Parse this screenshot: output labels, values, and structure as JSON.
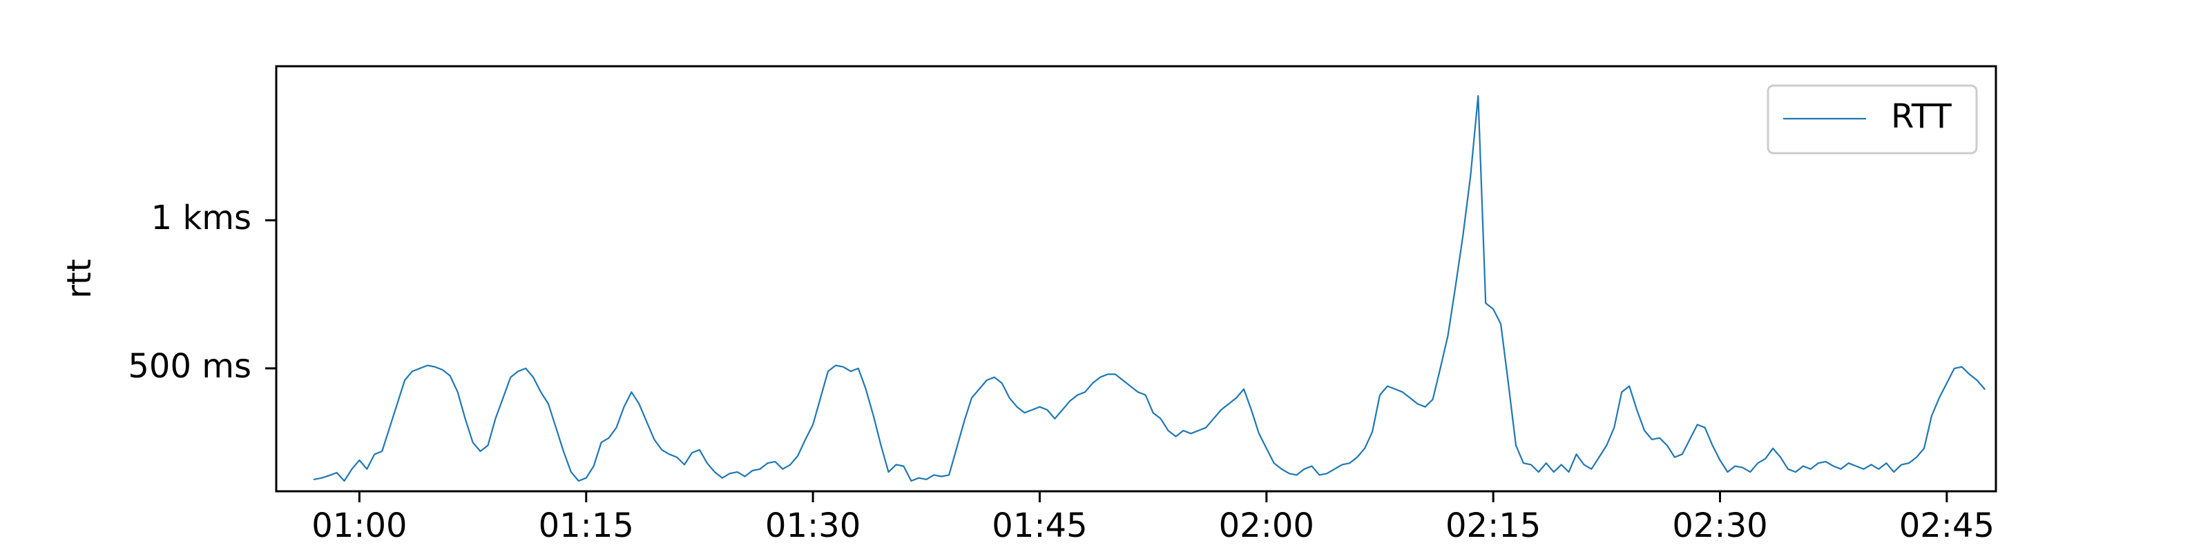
{
  "chart_data": {
    "type": "line",
    "title": "",
    "xlabel": "",
    "ylabel": "rtt",
    "x_unit": "HH:MM",
    "y_unit": "ms",
    "xlim": [
      "00:54:30",
      "02:48:15"
    ],
    "ylim": [
      85,
      1520
    ],
    "x_ticks": [
      {
        "value": "01:00",
        "label": "01:00"
      },
      {
        "value": "01:15",
        "label": "01:15"
      },
      {
        "value": "01:30",
        "label": "01:30"
      },
      {
        "value": "01:45",
        "label": "01:45"
      },
      {
        "value": "02:00",
        "label": "02:00"
      },
      {
        "value": "02:15",
        "label": "02:15"
      },
      {
        "value": "02:30",
        "label": "02:30"
      },
      {
        "value": "02:45",
        "label": "02:45"
      }
    ],
    "y_ticks": [
      {
        "value": 500,
        "label": "500 ms"
      },
      {
        "value": 1000,
        "label": "1 kms"
      }
    ],
    "grid": false,
    "legend": {
      "position": "top-right",
      "entries": [
        "RTT"
      ]
    },
    "series": [
      {
        "name": "RTT",
        "color": "#1f77b4",
        "points": [
          [
            "00:57:00",
            125
          ],
          [
            "00:57:30",
            130
          ],
          [
            "00:58:00",
            138
          ],
          [
            "00:58:30",
            148
          ],
          [
            "00:59:00",
            120
          ],
          [
            "00:59:30",
            160
          ],
          [
            "01:00:00",
            190
          ],
          [
            "01:00:30",
            160
          ],
          [
            "01:01:00",
            210
          ],
          [
            "01:01:30",
            220
          ],
          [
            "01:02:00",
            300
          ],
          [
            "01:02:30",
            380
          ],
          [
            "01:03:00",
            460
          ],
          [
            "01:03:30",
            490
          ],
          [
            "01:04:00",
            500
          ],
          [
            "01:04:30",
            510
          ],
          [
            "01:05:00",
            505
          ],
          [
            "01:05:30",
            495
          ],
          [
            "01:06:00",
            475
          ],
          [
            "01:06:30",
            420
          ],
          [
            "01:07:00",
            330
          ],
          [
            "01:07:30",
            250
          ],
          [
            "01:08:00",
            220
          ],
          [
            "01:08:30",
            240
          ],
          [
            "01:09:00",
            330
          ],
          [
            "01:09:30",
            400
          ],
          [
            "01:10:00",
            470
          ],
          [
            "01:10:30",
            490
          ],
          [
            "01:11:00",
            500
          ],
          [
            "01:11:30",
            470
          ],
          [
            "01:12:00",
            420
          ],
          [
            "01:12:30",
            380
          ],
          [
            "01:13:00",
            300
          ],
          [
            "01:13:30",
            220
          ],
          [
            "01:14:00",
            150
          ],
          [
            "01:14:30",
            120
          ],
          [
            "01:15:00",
            130
          ],
          [
            "01:15:30",
            170
          ],
          [
            "01:16:00",
            250
          ],
          [
            "01:16:30",
            265
          ],
          [
            "01:17:00",
            300
          ],
          [
            "01:17:30",
            370
          ],
          [
            "01:18:00",
            420
          ],
          [
            "01:18:30",
            380
          ],
          [
            "01:19:00",
            320
          ],
          [
            "01:19:30",
            260
          ],
          [
            "01:20:00",
            225
          ],
          [
            "01:20:30",
            210
          ],
          [
            "01:21:00",
            200
          ],
          [
            "01:21:30",
            175
          ],
          [
            "01:22:00",
            215
          ],
          [
            "01:22:30",
            225
          ],
          [
            "01:23:00",
            180
          ],
          [
            "01:23:30",
            150
          ],
          [
            "01:24:00",
            130
          ],
          [
            "01:24:30",
            145
          ],
          [
            "01:25:00",
            150
          ],
          [
            "01:25:30",
            135
          ],
          [
            "01:26:00",
            155
          ],
          [
            "01:26:30",
            160
          ],
          [
            "01:27:00",
            180
          ],
          [
            "01:27:30",
            185
          ],
          [
            "01:28:00",
            160
          ],
          [
            "01:28:30",
            175
          ],
          [
            "01:29:00",
            205
          ],
          [
            "01:29:30",
            260
          ],
          [
            "01:30:00",
            310
          ],
          [
            "01:30:30",
            400
          ],
          [
            "01:31:00",
            490
          ],
          [
            "01:31:30",
            510
          ],
          [
            "01:32:00",
            505
          ],
          [
            "01:32:30",
            490
          ],
          [
            "01:33:00",
            500
          ],
          [
            "01:33:30",
            430
          ],
          [
            "01:34:00",
            340
          ],
          [
            "01:34:30",
            240
          ],
          [
            "01:35:00",
            150
          ],
          [
            "01:35:30",
            175
          ],
          [
            "01:36:00",
            170
          ],
          [
            "01:36:30",
            120
          ],
          [
            "01:37:00",
            130
          ],
          [
            "01:37:30",
            125
          ],
          [
            "01:38:00",
            140
          ],
          [
            "01:38:30",
            135
          ],
          [
            "01:39:00",
            140
          ],
          [
            "01:39:30",
            230
          ],
          [
            "01:40:00",
            320
          ],
          [
            "01:40:30",
            400
          ],
          [
            "01:41:00",
            430
          ],
          [
            "01:41:30",
            460
          ],
          [
            "01:42:00",
            470
          ],
          [
            "01:42:30",
            450
          ],
          [
            "01:43:00",
            400
          ],
          [
            "01:43:30",
            370
          ],
          [
            "01:44:00",
            350
          ],
          [
            "01:44:30",
            360
          ],
          [
            "01:45:00",
            370
          ],
          [
            "01:45:30",
            360
          ],
          [
            "01:46:00",
            330
          ],
          [
            "01:46:30",
            360
          ],
          [
            "01:47:00",
            390
          ],
          [
            "01:47:30",
            410
          ],
          [
            "01:48:00",
            420
          ],
          [
            "01:48:30",
            450
          ],
          [
            "01:49:00",
            470
          ],
          [
            "01:49:30",
            480
          ],
          [
            "01:50:00",
            480
          ],
          [
            "01:50:30",
            460
          ],
          [
            "01:51:00",
            440
          ],
          [
            "01:51:30",
            420
          ],
          [
            "01:52:00",
            410
          ],
          [
            "01:52:30",
            350
          ],
          [
            "01:53:00",
            330
          ],
          [
            "01:53:30",
            290
          ],
          [
            "01:54:00",
            270
          ],
          [
            "01:54:30",
            290
          ],
          [
            "01:55:00",
            280
          ],
          [
            "01:55:30",
            290
          ],
          [
            "01:56:00",
            300
          ],
          [
            "01:56:30",
            330
          ],
          [
            "01:57:00",
            360
          ],
          [
            "01:57:30",
            380
          ],
          [
            "01:58:00",
            400
          ],
          [
            "01:58:30",
            430
          ],
          [
            "01:59:00",
            360
          ],
          [
            "01:59:30",
            280
          ],
          [
            "02:00:00",
            230
          ],
          [
            "02:00:30",
            180
          ],
          [
            "02:01:00",
            160
          ],
          [
            "02:01:30",
            145
          ],
          [
            "02:02:00",
            140
          ],
          [
            "02:02:30",
            160
          ],
          [
            "02:03:00",
            170
          ],
          [
            "02:03:30",
            140
          ],
          [
            "02:04:00",
            145
          ],
          [
            "02:04:30",
            160
          ],
          [
            "02:05:00",
            175
          ],
          [
            "02:05:30",
            180
          ],
          [
            "02:06:00",
            200
          ],
          [
            "02:06:30",
            230
          ],
          [
            "02:07:00",
            285
          ],
          [
            "02:07:30",
            410
          ],
          [
            "02:08:00",
            440
          ],
          [
            "02:08:30",
            430
          ],
          [
            "02:09:00",
            420
          ],
          [
            "02:09:30",
            400
          ],
          [
            "02:10:00",
            380
          ],
          [
            "02:10:30",
            370
          ],
          [
            "02:11:00",
            395
          ],
          [
            "02:11:30",
            500
          ],
          [
            "02:12:00",
            610
          ],
          [
            "02:12:30",
            775
          ],
          [
            "02:13:00",
            950
          ],
          [
            "02:13:30",
            1150
          ],
          [
            "02:14:00",
            1420
          ],
          [
            "02:14:30",
            720
          ],
          [
            "02:15:00",
            700
          ],
          [
            "02:15:30",
            650
          ],
          [
            "02:16:00",
            450
          ],
          [
            "02:16:30",
            240
          ],
          [
            "02:17:00",
            180
          ],
          [
            "02:17:30",
            175
          ],
          [
            "02:18:00",
            150
          ],
          [
            "02:18:30",
            180
          ],
          [
            "02:19:00",
            150
          ],
          [
            "02:19:30",
            175
          ],
          [
            "02:20:00",
            150
          ],
          [
            "02:20:30",
            210
          ],
          [
            "02:21:00",
            175
          ],
          [
            "02:21:30",
            160
          ],
          [
            "02:22:00",
            200
          ],
          [
            "02:22:30",
            240
          ],
          [
            "02:23:00",
            300
          ],
          [
            "02:23:30",
            420
          ],
          [
            "02:24:00",
            440
          ],
          [
            "02:24:30",
            360
          ],
          [
            "02:25:00",
            290
          ],
          [
            "02:25:30",
            260
          ],
          [
            "02:26:00",
            265
          ],
          [
            "02:26:30",
            240
          ],
          [
            "02:27:00",
            200
          ],
          [
            "02:27:30",
            210
          ],
          [
            "02:28:00",
            260
          ],
          [
            "02:28:30",
            310
          ],
          [
            "02:29:00",
            300
          ],
          [
            "02:29:30",
            240
          ],
          [
            "02:30:00",
            190
          ],
          [
            "02:30:30",
            150
          ],
          [
            "02:31:00",
            170
          ],
          [
            "02:31:30",
            165
          ],
          [
            "02:32:00",
            150
          ],
          [
            "02:32:30",
            180
          ],
          [
            "02:33:00",
            195
          ],
          [
            "02:33:30",
            230
          ],
          [
            "02:34:00",
            200
          ],
          [
            "02:34:30",
            160
          ],
          [
            "02:35:00",
            150
          ],
          [
            "02:35:30",
            170
          ],
          [
            "02:36:00",
            160
          ],
          [
            "02:36:30",
            180
          ],
          [
            "02:37:00",
            185
          ],
          [
            "02:37:30",
            170
          ],
          [
            "02:38:00",
            160
          ],
          [
            "02:38:30",
            180
          ],
          [
            "02:39:00",
            170
          ],
          [
            "02:39:30",
            160
          ],
          [
            "02:40:00",
            175
          ],
          [
            "02:40:30",
            160
          ],
          [
            "02:41:00",
            180
          ],
          [
            "02:41:30",
            150
          ],
          [
            "02:42:00",
            175
          ],
          [
            "02:42:30",
            180
          ],
          [
            "02:43:00",
            200
          ],
          [
            "02:43:30",
            230
          ],
          [
            "02:44:00",
            340
          ],
          [
            "02:44:30",
            400
          ],
          [
            "02:45:00",
            450
          ],
          [
            "02:45:30",
            500
          ],
          [
            "02:46:00",
            505
          ],
          [
            "02:46:30",
            480
          ],
          [
            "02:47:00",
            460
          ],
          [
            "02:47:30",
            430
          ]
        ]
      }
    ]
  }
}
